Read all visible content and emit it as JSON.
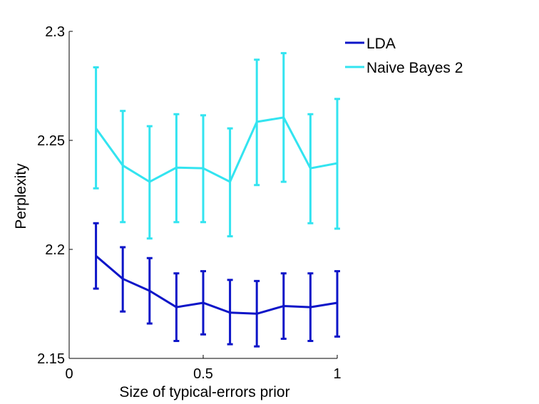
{
  "chart_data": {
    "type": "line",
    "title": "",
    "xlabel": "Size of typical-errors prior",
    "ylabel": "Perplexity",
    "xlim": [
      0,
      1
    ],
    "ylim": [
      2.15,
      2.3
    ],
    "xticks": [
      0,
      0.5,
      1
    ],
    "xtick_labels": [
      "0",
      "0.5",
      "1"
    ],
    "yticks": [
      2.15,
      2.2,
      2.25,
      2.3
    ],
    "ytick_labels": [
      "2.15",
      "2.2",
      "2.25",
      "2.3"
    ],
    "grid": false,
    "legend_position": "outside-top-right",
    "x": [
      0.1,
      0.2,
      0.3,
      0.4,
      0.5,
      0.6,
      0.7,
      0.8,
      0.9,
      1.0
    ],
    "series": [
      {
        "name": "LDA",
        "color": "#0d15c8",
        "values": [
          2.197,
          2.1865,
          2.181,
          2.1735,
          2.1755,
          2.171,
          2.1705,
          2.174,
          2.1735,
          2.1755
        ],
        "err_low": [
          2.182,
          2.1715,
          2.166,
          2.158,
          2.161,
          2.1565,
          2.1555,
          2.159,
          2.158,
          2.16
        ],
        "err_high": [
          2.212,
          2.201,
          2.196,
          2.189,
          2.19,
          2.186,
          2.1855,
          2.189,
          2.189,
          2.19
        ]
      },
      {
        "name": "Naive Bayes 2",
        "color": "#33e4f0",
        "values": [
          2.2555,
          2.2385,
          2.231,
          2.2375,
          2.2372,
          2.231,
          2.2585,
          2.2605,
          2.2372,
          2.2395
        ],
        "err_low": [
          2.228,
          2.2125,
          2.205,
          2.2125,
          2.2125,
          2.206,
          2.2295,
          2.231,
          2.212,
          2.2095
        ],
        "err_high": [
          2.2835,
          2.2635,
          2.2565,
          2.262,
          2.2615,
          2.2555,
          2.287,
          2.29,
          2.262,
          2.269
        ]
      }
    ]
  }
}
